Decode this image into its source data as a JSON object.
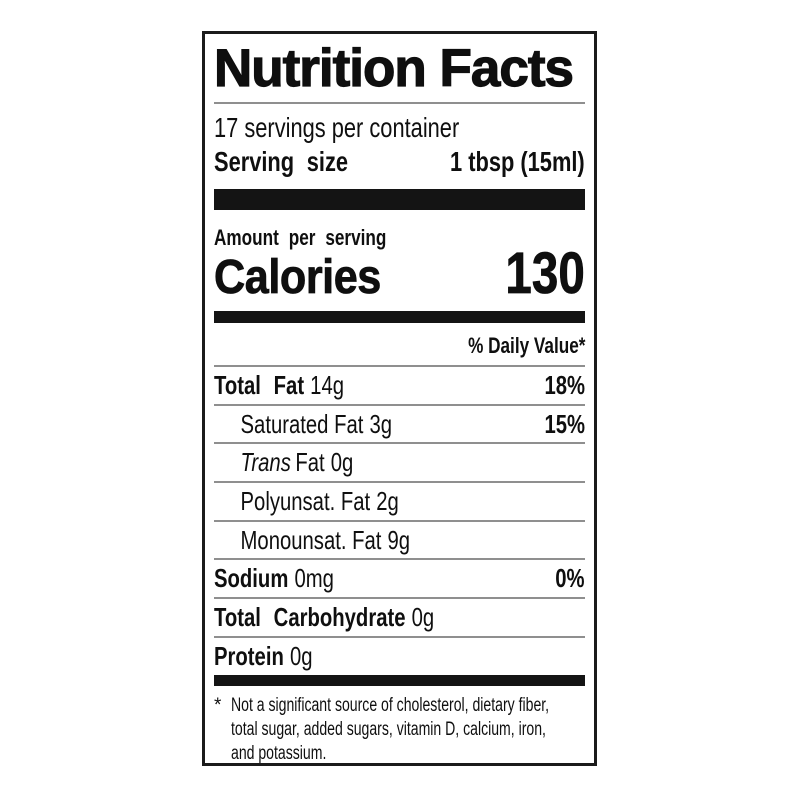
{
  "colors": {
    "ink": "#0f0f0f",
    "background": "#ffffff",
    "hairline": "#8f8f8f",
    "bar": "#141414"
  },
  "label": {
    "title": "Nutrition Facts",
    "servings_per_container": "17 servings per container",
    "serving_size": {
      "label": "Serving size",
      "value": "1 tbsp (15ml)"
    },
    "amount_per_serving": "Amount per serving",
    "calories": {
      "label": "Calories",
      "value": "130"
    },
    "daily_value_header": "% Daily Value*",
    "rows": [
      {
        "name": "Total Fat",
        "amount": "14g",
        "percent": "18%"
      },
      {
        "name": "Saturated Fat",
        "amount": "3g",
        "percent": "15%"
      },
      {
        "name_italic": "Trans",
        "name": "Fat",
        "amount": "0g"
      },
      {
        "name": "Polyunsat. Fat",
        "amount": "2g"
      },
      {
        "name": "Monounsat. Fat",
        "amount": "9g"
      },
      {
        "name": "Sodium",
        "amount": "0mg",
        "percent": "0%"
      },
      {
        "name": "Total Carbohydrate",
        "amount": "0g"
      },
      {
        "name": "Protein",
        "amount": "0g"
      }
    ],
    "footnote": {
      "marker": "*",
      "lines": [
        "Not a significant source of cholesterol, dietary fiber,",
        "total sugar, added sugars, vitamin D, calcium, iron,",
        "and potassium."
      ]
    }
  }
}
